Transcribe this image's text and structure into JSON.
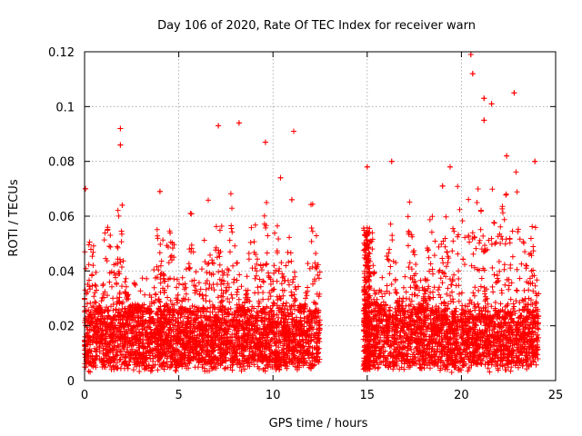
{
  "chart_data": {
    "type": "scatter",
    "title": "Day 106 of 2020, Rate Of TEC Index for receiver warn",
    "xlabel": "GPS time / hours",
    "ylabel": "ROTI / TECUs",
    "xlim": [
      0,
      25
    ],
    "ylim": [
      0,
      0.12
    ],
    "x_ticks": [
      "0",
      "5",
      "10",
      "15",
      "20",
      "25"
    ],
    "y_ticks": [
      "0",
      "0.02",
      "0.04",
      "0.06",
      "0.08",
      "0.1",
      "0.12"
    ],
    "grid": true,
    "marker": "+",
    "color": "#ff0000",
    "gap_hours": [
      12.5,
      14.8
    ],
    "dense_band": [
      0.005,
      0.025
    ],
    "notable_points": [
      {
        "x": 0.05,
        "y": 0.07
      },
      {
        "x": 1.9,
        "y": 0.092
      },
      {
        "x": 1.9,
        "y": 0.086
      },
      {
        "x": 7.1,
        "y": 0.093
      },
      {
        "x": 8.2,
        "y": 0.094
      },
      {
        "x": 9.6,
        "y": 0.087
      },
      {
        "x": 11.1,
        "y": 0.091
      },
      {
        "x": 15.0,
        "y": 0.078
      },
      {
        "x": 16.3,
        "y": 0.08
      },
      {
        "x": 19.4,
        "y": 0.078
      },
      {
        "x": 20.5,
        "y": 0.119
      },
      {
        "x": 20.6,
        "y": 0.112
      },
      {
        "x": 21.2,
        "y": 0.103
      },
      {
        "x": 21.2,
        "y": 0.095
      },
      {
        "x": 21.6,
        "y": 0.101
      },
      {
        "x": 22.8,
        "y": 0.105
      },
      {
        "x": 23.9,
        "y": 0.08
      },
      {
        "x": 2.0,
        "y": 0.064
      },
      {
        "x": 4.0,
        "y": 0.069
      },
      {
        "x": 10.4,
        "y": 0.074
      },
      {
        "x": 11.0,
        "y": 0.066
      },
      {
        "x": 19.0,
        "y": 0.071
      },
      {
        "x": 22.4,
        "y": 0.082
      }
    ]
  }
}
